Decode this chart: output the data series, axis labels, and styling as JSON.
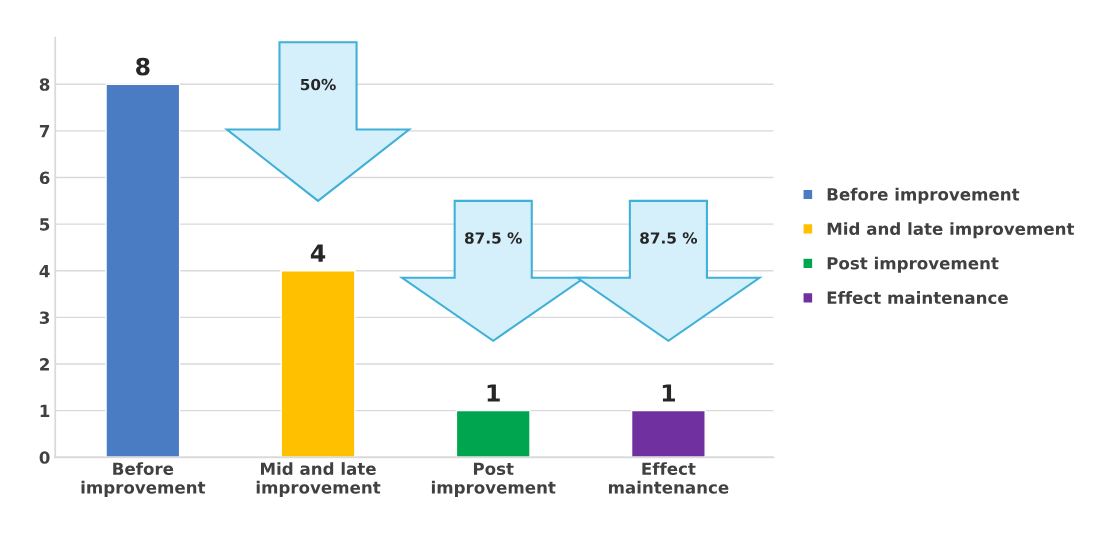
{
  "chart_data": {
    "type": "bar",
    "categories": [
      "Before improvement",
      "Mid and late improvement",
      "Post improvement",
      "Effect maintenance"
    ],
    "series": [
      {
        "name": "Before improvement",
        "color": "#4a7cc4",
        "values": [
          8,
          null,
          null,
          null
        ]
      },
      {
        "name": "Mid and late improvement",
        "color": "#ffc000",
        "values": [
          null,
          4,
          null,
          null
        ]
      },
      {
        "name": "Post improvement",
        "color": "#00a550",
        "values": [
          null,
          null,
          1,
          null
        ]
      },
      {
        "name": "Effect maintenance",
        "color": "#7030a0",
        "values": [
          null,
          null,
          null,
          1
        ]
      }
    ],
    "stacked": true,
    "data_labels": true,
    "ylim": [
      0,
      9
    ],
    "yticks": [
      0,
      1,
      2,
      3,
      4,
      5,
      6,
      7,
      8
    ],
    "grid": "y",
    "legend": "right",
    "annotations": [
      "50%",
      "87.5 %",
      "87.5 %"
    ]
  }
}
